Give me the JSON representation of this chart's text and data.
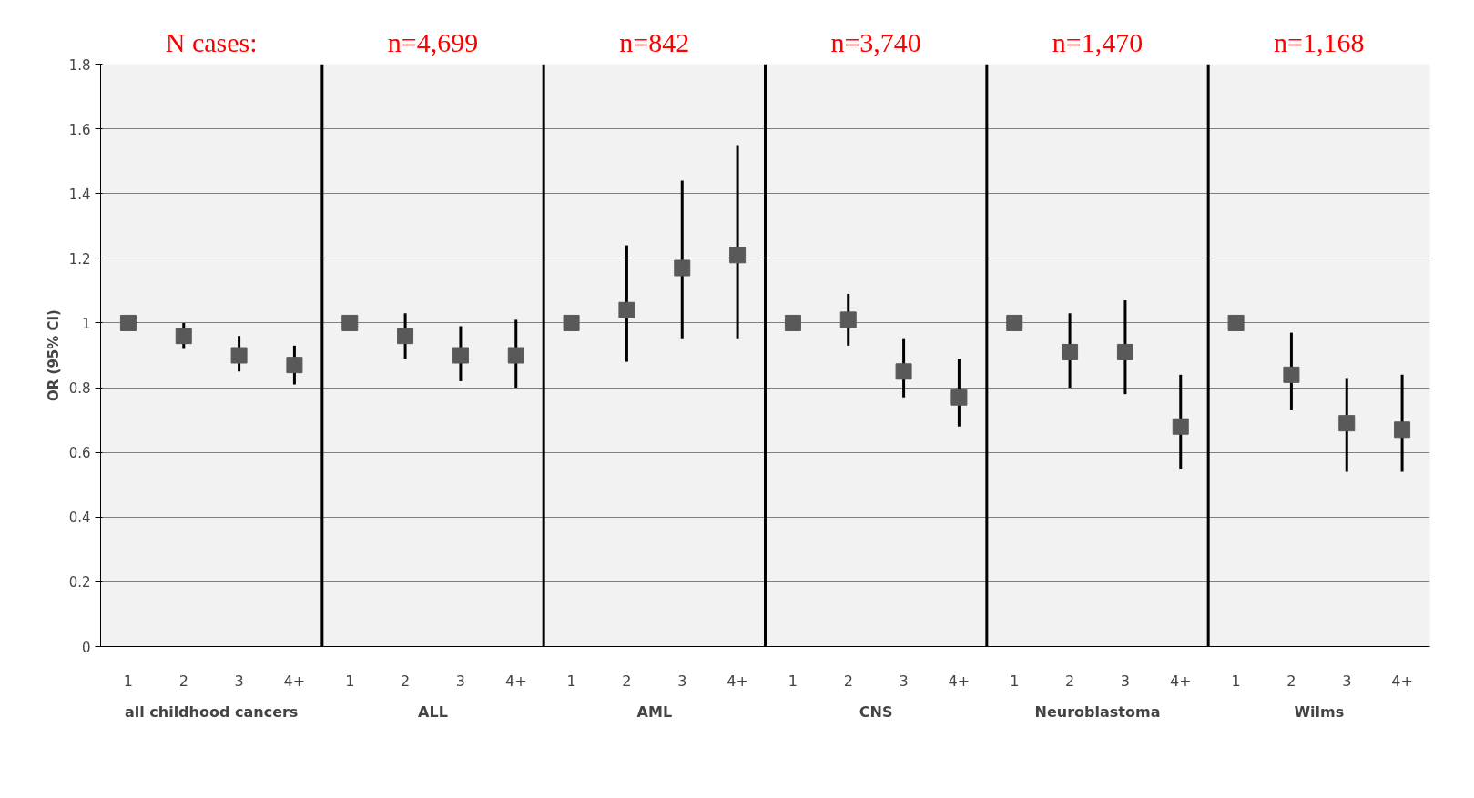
{
  "chart_data": {
    "type": "scatter",
    "ylabel": "OR (95% CI)",
    "categories": [
      "1",
      "2",
      "3",
      "4+",
      "1",
      "2",
      "3",
      "4+",
      "1",
      "2",
      "3",
      "4+",
      "1",
      "2",
      "3",
      "4+",
      "1",
      "2",
      "3",
      "4+",
      "1",
      "2",
      "3",
      "4+"
    ],
    "series": [
      {
        "color": "#595959",
        "values": [
          1,
          0.96,
          0.9,
          0.87,
          1,
          0.96,
          0.9,
          0.9,
          1,
          1.04,
          1.17,
          1.21,
          1,
          1.01,
          0.85,
          0.77,
          1,
          0.91,
          0.91,
          0.68,
          1,
          0.84,
          0.69,
          0.67
        ],
        "errors": [
          null,
          [
            0.92,
            1.0
          ],
          [
            0.85,
            0.96
          ],
          [
            0.81,
            0.93
          ],
          null,
          [
            0.89,
            1.03
          ],
          [
            0.82,
            0.99
          ],
          [
            0.8,
            1.01
          ],
          null,
          [
            0.88,
            1.24
          ],
          [
            0.95,
            1.44
          ],
          [
            0.95,
            1.55
          ],
          null,
          [
            0.93,
            1.09
          ],
          [
            0.77,
            0.95
          ],
          [
            0.68,
            0.89
          ],
          null,
          [
            0.8,
            1.03
          ],
          [
            0.78,
            1.07
          ],
          [
            0.55,
            0.84
          ],
          null,
          [
            0.73,
            0.97
          ],
          [
            0.54,
            0.83
          ],
          [
            0.54,
            0.84
          ]
        ]
      }
    ],
    "ylim": [
      0,
      1.8
    ],
    "yticks": [
      0,
      {
        "value": 0.2,
        "label": "0.2"
      },
      {
        "value": 0.4,
        "label": "0.4"
      },
      {
        "value": 0.6,
        "label": "0.6"
      },
      {
        "value": 0.8,
        "label": "0.8"
      },
      1,
      {
        "value": 1.2,
        "label": "1.2"
      },
      {
        "value": 1.4,
        "label": "1.4"
      },
      {
        "value": 1.6,
        "label": "1.6"
      },
      {
        "value": 1.8,
        "label": "1.8"
      }
    ],
    "grid": "y",
    "marker": "square",
    "annotations": [
      "N cases:",
      "n=4,699",
      "n=842",
      "n=3,740",
      "n=1,470",
      "n=1,168",
      "all childhood cancers",
      "ALL",
      "AML",
      "CNS",
      "Neuroblastoma",
      "Wilms"
    ]
  }
}
